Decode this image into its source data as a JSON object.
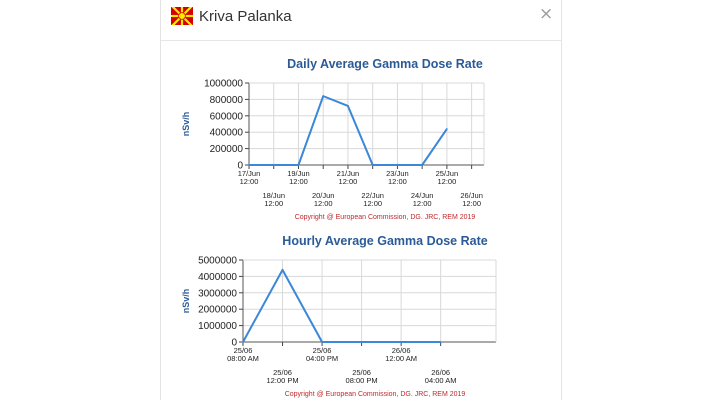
{
  "popup": {
    "title": "Kriva Palanka",
    "close_glyph": "×",
    "flag_icon": "north-macedonia-flag-icon",
    "flag_colors": {
      "field": "#d20000",
      "sun": "#ffe600"
    }
  },
  "colors": {
    "title": "#2b5b97",
    "line": "#3b87d8",
    "copyright": "#c0282d",
    "grid": "#d8d8d8"
  },
  "chart_data": [
    {
      "type": "line",
      "title": "Daily Average Gamma Dose Rate",
      "ylabel": "nSv/h",
      "ylim": [
        0,
        1000000
      ],
      "yticks": [
        "1000000",
        "800000",
        "600000",
        "400000",
        "200000",
        "0"
      ],
      "xlim": [
        0,
        9.5
      ],
      "xticks": [
        {
          "line1": "17/Jun",
          "line2": "12:00"
        },
        {
          "line1": "18/Jun",
          "line2": "12:00"
        },
        {
          "line1": "19/Jun",
          "line2": "12:00"
        },
        {
          "line1": "20/Jun",
          "line2": "12:00"
        },
        {
          "line1": "21/Jun",
          "line2": "12:00"
        },
        {
          "line1": "22/Jun",
          "line2": "12:00"
        },
        {
          "line1": "23/Jun",
          "line2": "12:00"
        },
        {
          "line1": "24/Jun",
          "line2": "12:00"
        },
        {
          "line1": "25/Jun",
          "line2": "12:00"
        },
        {
          "line1": "26/Jun",
          "line2": "12:00"
        }
      ],
      "grid": true,
      "series": [
        {
          "x": [
            "17/Jun 12:00",
            "18/Jun 12:00",
            "19/Jun 12:00",
            "20/Jun 12:00",
            "21/Jun 12:00",
            "22/Jun 12:00",
            "23/Jun 12:00",
            "24/Jun 12:00",
            "25/Jun 12:00"
          ],
          "values": [
            0,
            0,
            0,
            840000,
            720000,
            0,
            0,
            0,
            440000
          ]
        }
      ],
      "copyright": "Copyright @ European Commission, DG. JRC, REM 2019"
    },
    {
      "type": "line",
      "title": "Hourly Average Gamma Dose Rate",
      "ylabel": "nSv/h",
      "ylim": [
        0,
        5000000
      ],
      "yticks": [
        "5000000",
        "4000000",
        "3000000",
        "2000000",
        "1000000",
        "0"
      ],
      "xlim": [
        0,
        6.4
      ],
      "xticks": [
        {
          "line1": "25/06",
          "line2": "08:00 AM"
        },
        {
          "line1": "25/06",
          "line2": "12:00 PM"
        },
        {
          "line1": "25/06",
          "line2": "04:00 PM"
        },
        {
          "line1": "25/06",
          "line2": "08:00 PM"
        },
        {
          "line1": "26/06",
          "line2": "12:00 AM"
        },
        {
          "line1": "26/06",
          "line2": "04:00 AM"
        }
      ],
      "grid": true,
      "series": [
        {
          "x": [
            "25/06 08:00 AM",
            "25/06 12:00 PM",
            "25/06 04:00 PM",
            "26/06 04:00 AM"
          ],
          "values": [
            0,
            4400000,
            0,
            0
          ]
        }
      ],
      "copyright": "Copyright @ European Commission, DG. JRC, REM 2019"
    }
  ]
}
